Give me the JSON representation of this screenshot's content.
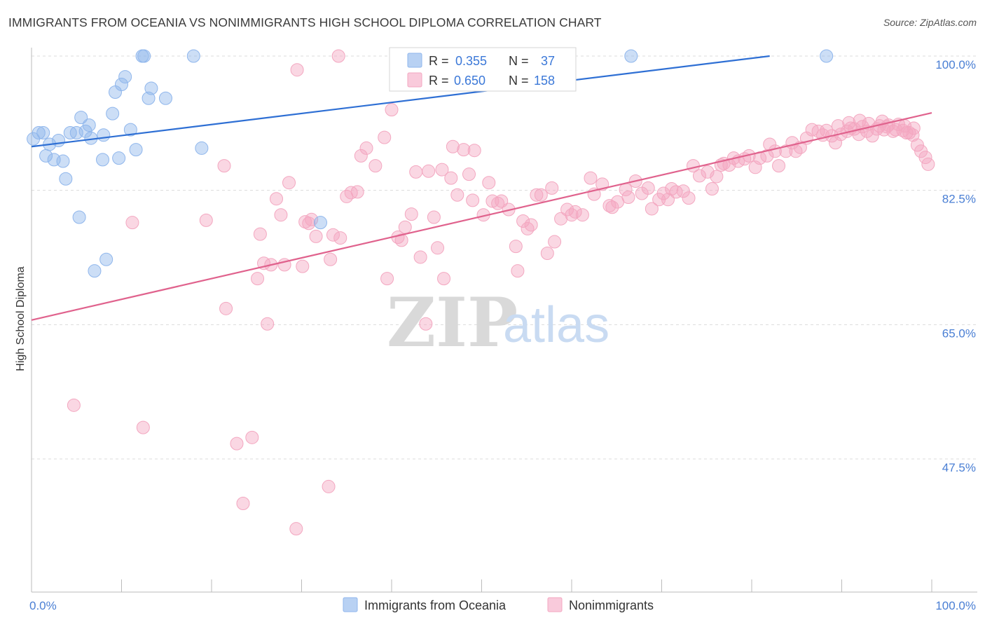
{
  "header": {
    "title": "IMMIGRANTS FROM OCEANIA VS NONIMMIGRANTS HIGH SCHOOL DIPLOMA CORRELATION CHART",
    "source": "Source: ZipAtlas.com"
  },
  "watermark": {
    "zip": "ZIP",
    "atlas": "atlas"
  },
  "chart_data": {
    "type": "scatter",
    "title": "IMMIGRANTS FROM OCEANIA VS NONIMMIGRANTS HIGH SCHOOL DIPLOMA CORRELATION CHART",
    "xlabel": "",
    "ylabel": "High School Diploma",
    "xlim": [
      0,
      100
    ],
    "ylim": [
      32,
      101.5
    ],
    "x_tick_labels": [
      "0.0%",
      "100.0%"
    ],
    "y_ticks": [
      47.5,
      65.0,
      82.5,
      100.0
    ],
    "y_tick_labels": [
      "47.5%",
      "65.0%",
      "82.5%",
      "100.0%"
    ],
    "grid": true,
    "legend_placement": "top-center",
    "series": [
      {
        "name": "Immigrants from Oceania",
        "color": "#8fb6ec",
        "line_color": "#2e6fd4",
        "R": "0.355",
        "N": "37",
        "trend": [
          [
            0,
            88.2
          ],
          [
            82,
            100.0
          ]
        ],
        "points": [
          [
            0.2,
            89.2
          ],
          [
            0.8,
            90.0
          ],
          [
            1.3,
            90.0
          ],
          [
            1.6,
            87.0
          ],
          [
            2.0,
            88.5
          ],
          [
            2.5,
            86.5
          ],
          [
            3.0,
            89.0
          ],
          [
            3.5,
            86.3
          ],
          [
            3.8,
            84.0
          ],
          [
            4.3,
            90.0
          ],
          [
            5.0,
            90.0
          ],
          [
            5.3,
            79.0
          ],
          [
            5.5,
            92.0
          ],
          [
            6.0,
            90.2
          ],
          [
            6.4,
            91.0
          ],
          [
            6.6,
            89.3
          ],
          [
            7.0,
            72.0
          ],
          [
            7.9,
            86.5
          ],
          [
            8.0,
            89.7
          ],
          [
            8.3,
            73.5
          ],
          [
            9.0,
            92.5
          ],
          [
            9.3,
            95.3
          ],
          [
            9.7,
            86.7
          ],
          [
            10.0,
            96.3
          ],
          [
            10.4,
            97.3
          ],
          [
            11.0,
            90.4
          ],
          [
            11.6,
            87.8
          ],
          [
            12.3,
            100.0
          ],
          [
            12.5,
            100.0
          ],
          [
            13.0,
            94.5
          ],
          [
            13.3,
            95.8
          ],
          [
            14.9,
            94.5
          ],
          [
            18.0,
            100.0
          ],
          [
            18.9,
            88.0
          ],
          [
            32.1,
            78.3
          ],
          [
            66.6,
            100.0
          ],
          [
            88.3,
            100.0
          ]
        ]
      },
      {
        "name": "Nonimmigrants",
        "color": "#f3a7c0",
        "line_color": "#e0628d",
        "R": "0.650",
        "N": "158",
        "trend": [
          [
            0,
            65.6
          ],
          [
            100,
            92.6
          ]
        ],
        "points": [
          [
            4.7,
            54.5
          ],
          [
            11.2,
            78.3
          ],
          [
            12.4,
            51.6
          ],
          [
            19.4,
            78.6
          ],
          [
            21.4,
            85.7
          ],
          [
            21.6,
            67.1
          ],
          [
            22.8,
            49.5
          ],
          [
            23.5,
            41.7
          ],
          [
            24.5,
            50.3
          ],
          [
            25.1,
            71.0
          ],
          [
            25.4,
            76.8
          ],
          [
            25.8,
            73.0
          ],
          [
            26.2,
            65.1
          ],
          [
            26.6,
            72.8
          ],
          [
            27.2,
            81.4
          ],
          [
            27.7,
            79.3
          ],
          [
            28.1,
            72.8
          ],
          [
            28.6,
            83.5
          ],
          [
            29.4,
            38.4
          ],
          [
            29.5,
            98.2
          ],
          [
            30.1,
            72.6
          ],
          [
            30.4,
            78.4
          ],
          [
            30.8,
            78.2
          ],
          [
            31.1,
            78.7
          ],
          [
            31.6,
            76.5
          ],
          [
            33.0,
            43.9
          ],
          [
            33.2,
            73.5
          ],
          [
            33.5,
            76.7
          ],
          [
            34.1,
            100.0
          ],
          [
            34.3,
            76.3
          ],
          [
            35.0,
            81.7
          ],
          [
            35.5,
            82.2
          ],
          [
            36.2,
            82.3
          ],
          [
            36.6,
            87.0
          ],
          [
            37.2,
            88.0
          ],
          [
            38.2,
            85.7
          ],
          [
            39.2,
            89.4
          ],
          [
            39.5,
            71.0
          ],
          [
            40.0,
            93.0
          ],
          [
            40.7,
            76.4
          ],
          [
            41.1,
            76.0
          ],
          [
            41.5,
            77.7
          ],
          [
            42.2,
            79.4
          ],
          [
            42.7,
            84.9
          ],
          [
            43.2,
            73.8
          ],
          [
            43.8,
            65.1
          ],
          [
            44.1,
            85.0
          ],
          [
            44.7,
            79.0
          ],
          [
            45.1,
            75.0
          ],
          [
            45.6,
            85.2
          ],
          [
            45.8,
            71.0
          ],
          [
            46.6,
            84.1
          ],
          [
            46.8,
            88.2
          ],
          [
            47.3,
            81.9
          ],
          [
            48.0,
            87.8
          ],
          [
            48.6,
            84.6
          ],
          [
            49.0,
            81.2
          ],
          [
            49.2,
            87.7
          ],
          [
            50.2,
            79.3
          ],
          [
            50.8,
            83.5
          ],
          [
            51.2,
            81.1
          ],
          [
            51.8,
            80.8
          ],
          [
            52.2,
            81.1
          ],
          [
            53.0,
            80.0
          ],
          [
            53.8,
            75.2
          ],
          [
            54.0,
            72.0
          ],
          [
            54.6,
            78.5
          ],
          [
            55.1,
            77.5
          ],
          [
            55.5,
            78.0
          ],
          [
            56.1,
            81.9
          ],
          [
            56.6,
            81.9
          ],
          [
            57.3,
            74.3
          ],
          [
            57.8,
            82.8
          ],
          [
            58.1,
            75.8
          ],
          [
            58.8,
            78.8
          ],
          [
            59.5,
            80.0
          ],
          [
            60.0,
            79.3
          ],
          [
            60.4,
            79.7
          ],
          [
            61.2,
            79.3
          ],
          [
            62.1,
            84.1
          ],
          [
            62.5,
            82.0
          ],
          [
            63.4,
            83.3
          ],
          [
            64.2,
            80.5
          ],
          [
            64.5,
            80.3
          ],
          [
            65.1,
            81.0
          ],
          [
            66.0,
            82.6
          ],
          [
            66.3,
            81.6
          ],
          [
            67.1,
            83.7
          ],
          [
            67.8,
            82.1
          ],
          [
            68.5,
            82.8
          ],
          [
            68.9,
            80.1
          ],
          [
            69.7,
            81.3
          ],
          [
            70.2,
            82.1
          ],
          [
            70.7,
            81.3
          ],
          [
            71.1,
            82.7
          ],
          [
            71.6,
            82.3
          ],
          [
            72.4,
            82.4
          ],
          [
            73.0,
            81.5
          ],
          [
            73.5,
            85.7
          ],
          [
            74.2,
            84.4
          ],
          [
            75.1,
            84.9
          ],
          [
            75.6,
            82.7
          ],
          [
            76.1,
            84.3
          ],
          [
            76.6,
            85.8
          ],
          [
            76.9,
            86.0
          ],
          [
            77.5,
            85.8
          ],
          [
            78.0,
            86.7
          ],
          [
            78.5,
            86.3
          ],
          [
            79.2,
            86.6
          ],
          [
            79.7,
            87.0
          ],
          [
            80.4,
            85.5
          ],
          [
            80.9,
            86.7
          ],
          [
            81.7,
            87.0
          ],
          [
            82.0,
            88.5
          ],
          [
            82.6,
            87.6
          ],
          [
            83.0,
            85.7
          ],
          [
            83.8,
            87.6
          ],
          [
            84.5,
            88.7
          ],
          [
            84.9,
            87.6
          ],
          [
            85.4,
            88.1
          ],
          [
            86.1,
            89.3
          ],
          [
            86.7,
            90.4
          ],
          [
            87.4,
            90.2
          ],
          [
            87.9,
            89.7
          ],
          [
            88.3,
            90.3
          ],
          [
            88.9,
            89.6
          ],
          [
            89.3,
            88.7
          ],
          [
            89.9,
            89.8
          ],
          [
            90.6,
            90.2
          ],
          [
            91.0,
            90.6
          ],
          [
            91.4,
            90.5
          ],
          [
            91.9,
            89.8
          ],
          [
            92.3,
            90.8
          ],
          [
            92.8,
            90.2
          ],
          [
            93.4,
            89.6
          ],
          [
            93.9,
            90.5
          ],
          [
            94.2,
            90.9
          ],
          [
            94.7,
            90.4
          ],
          [
            95.2,
            91.0
          ],
          [
            95.7,
            90.2
          ],
          [
            96.3,
            91.1
          ],
          [
            96.8,
            90.3
          ],
          [
            97.2,
            90.0
          ],
          [
            97.5,
            90.0
          ],
          [
            97.9,
            89.7
          ],
          [
            98.4,
            88.4
          ],
          [
            98.8,
            87.6
          ],
          [
            99.3,
            86.8
          ],
          [
            99.6,
            85.9
          ],
          [
            98.0,
            90.6
          ],
          [
            96.0,
            90.4
          ],
          [
            94.5,
            91.5
          ],
          [
            93.0,
            91.2
          ],
          [
            92.0,
            91.6
          ],
          [
            90.8,
            91.3
          ],
          [
            89.6,
            90.9
          ],
          [
            95.0,
            90.8
          ],
          [
            97.0,
            90.9
          ]
        ]
      }
    ]
  },
  "legend": {
    "r_label": "R =",
    "n_label": "N ="
  }
}
